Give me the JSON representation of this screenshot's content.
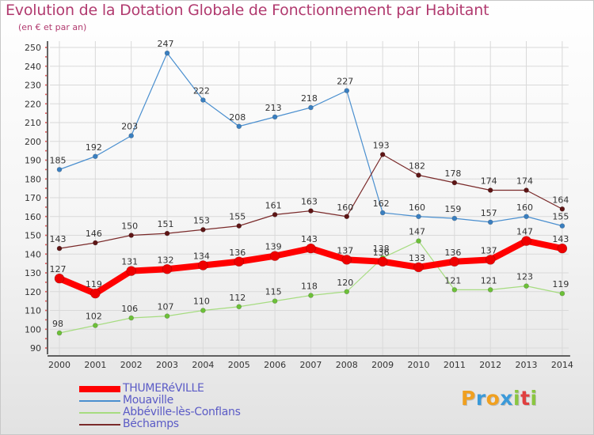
{
  "title": "Evolution de la Dotation Globale de Fonctionnement par Habitant",
  "subtitle": "(en € et par an)",
  "logo": {
    "letters": [
      "P",
      "r",
      "o",
      "x",
      "i",
      "t",
      "i"
    ],
    "colors": [
      "#f0a020",
      "#3b9ad9",
      "#f0a020",
      "#3b9ad9",
      "#8ac640",
      "#e04040",
      "#8ac640"
    ]
  },
  "colors": {
    "axis_text": "#333333",
    "axis_line": "#333333",
    "grid": "#d9d9d9",
    "tick_marks": "#e05050"
  },
  "chart_data": {
    "type": "line",
    "title": "Evolution de la Dotation Globale de Fonctionnement par Habitant",
    "subtitle": "(en € et par an)",
    "xlabel": "",
    "ylabel": "",
    "x": [
      "2000",
      "2001",
      "2002",
      "2003",
      "2004",
      "2005",
      "2006",
      "2007",
      "2008",
      "2009",
      "2010",
      "2011",
      "2012",
      "2013",
      "2014"
    ],
    "ylim": [
      90,
      250
    ],
    "yticks": [
      90,
      100,
      110,
      120,
      130,
      140,
      150,
      160,
      170,
      180,
      190,
      200,
      210,
      220,
      230,
      240,
      250
    ],
    "grid": true,
    "legend_position": "bottom-left",
    "series": [
      {
        "name": "Mouaville",
        "color": "#4a8fcf",
        "point_color": "#3a7fc0",
        "width": 1.2,
        "marker": 3,
        "label_color": "#333333",
        "values": [
          185,
          192,
          203,
          247,
          222,
          208,
          213,
          218,
          227,
          162,
          160,
          159,
          157,
          160,
          155
        ]
      },
      {
        "name": "Abbéville-lès-Conflans",
        "color": "#a6dc80",
        "point_color": "#6cc038",
        "width": 1.2,
        "marker": 3,
        "label_color": "#333333",
        "values": [
          98,
          102,
          106,
          107,
          110,
          112,
          115,
          118,
          120,
          138,
          147,
          121,
          121,
          123,
          119
        ]
      },
      {
        "name": "Béchamps",
        "color": "#7a2a2a",
        "point_color": "#5e1515",
        "width": 1.2,
        "marker": 3,
        "label_color": "#333333",
        "values": [
          143,
          146,
          150,
          151,
          153,
          155,
          161,
          163,
          160,
          193,
          182,
          178,
          174,
          174,
          164
        ]
      },
      {
        "name": "THUMERéVILLE",
        "color": "#ff0000",
        "point_color": "#ee0000",
        "width": 8,
        "marker": 6,
        "label_color": "#333333",
        "values": [
          127,
          119,
          131,
          132,
          134,
          136,
          139,
          143,
          137,
          136,
          133,
          136,
          137,
          147,
          143
        ]
      }
    ],
    "legend": [
      "THUMERéVILLE",
      "Mouaville",
      "Abbéville-lès-Conflans",
      "Béchamps"
    ]
  }
}
